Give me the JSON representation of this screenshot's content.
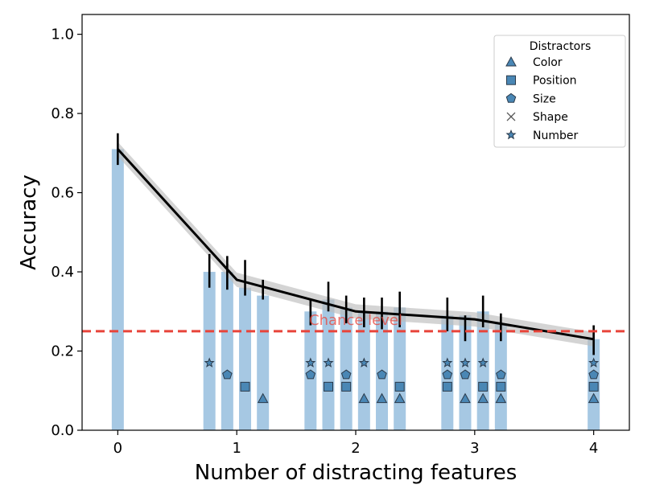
{
  "chart_data": {
    "type": "bar",
    "xlabel": "Number of distracting features",
    "ylabel": "Accuracy",
    "xlim": [
      -0.3,
      4.3
    ],
    "ylim": [
      0.0,
      1.05
    ],
    "xticks": [
      "0",
      "1",
      "2",
      "3",
      "4"
    ],
    "yticks": [
      "0.0",
      "0.2",
      "0.4",
      "0.6",
      "0.8",
      "1.0"
    ],
    "grid": false,
    "bars": [
      {
        "x": 0.0,
        "value": 0.71,
        "markers": []
      },
      {
        "x": 0.77,
        "value": 0.4,
        "markers": [
          "Number"
        ]
      },
      {
        "x": 0.92,
        "value": 0.4,
        "markers": [
          "Size"
        ]
      },
      {
        "x": 1.07,
        "value": 0.36,
        "markers": [
          "Position"
        ]
      },
      {
        "x": 1.22,
        "value": 0.34,
        "markers": [
          "Color"
        ]
      },
      {
        "x": 1.62,
        "value": 0.3,
        "markers": [
          "Size",
          "Number"
        ]
      },
      {
        "x": 1.77,
        "value": 0.33,
        "markers": [
          "Position",
          "Number"
        ]
      },
      {
        "x": 1.92,
        "value": 0.31,
        "markers": [
          "Position",
          "Size"
        ]
      },
      {
        "x": 2.07,
        "value": 0.3,
        "markers": [
          "Color",
          "Number"
        ]
      },
      {
        "x": 2.22,
        "value": 0.3,
        "markers": [
          "Color",
          "Size"
        ]
      },
      {
        "x": 2.37,
        "value": 0.31,
        "markers": [
          "Color",
          "Position"
        ]
      },
      {
        "x": 2.77,
        "value": 0.29,
        "markers": [
          "Position",
          "Size",
          "Number"
        ]
      },
      {
        "x": 2.92,
        "value": 0.29,
        "markers": [
          "Color",
          "Size",
          "Number"
        ]
      },
      {
        "x": 3.07,
        "value": 0.3,
        "markers": [
          "Color",
          "Position",
          "Number"
        ]
      },
      {
        "x": 3.22,
        "value": 0.27,
        "markers": [
          "Color",
          "Position",
          "Size"
        ]
      },
      {
        "x": 4.0,
        "value": 0.23,
        "markers": [
          "Color",
          "Position",
          "Size",
          "Number"
        ]
      }
    ],
    "line": {
      "x": [
        0,
        1,
        2,
        3,
        4
      ],
      "y": [
        0.71,
        0.38,
        0.3,
        0.28,
        0.23
      ],
      "ci_half_width": 0.018
    },
    "error_bars": [
      {
        "x": 0.0,
        "low": 0.67,
        "high": 0.75
      },
      {
        "x": 0.77,
        "low": 0.36,
        "high": 0.445
      },
      {
        "x": 0.92,
        "low": 0.355,
        "high": 0.44
      },
      {
        "x": 1.07,
        "low": 0.34,
        "high": 0.43
      },
      {
        "x": 1.22,
        "low": 0.33,
        "high": 0.38
      },
      {
        "x": 1.62,
        "low": 0.265,
        "high": 0.33
      },
      {
        "x": 1.77,
        "low": 0.3,
        "high": 0.375
      },
      {
        "x": 1.92,
        "low": 0.27,
        "high": 0.34
      },
      {
        "x": 2.07,
        "low": 0.26,
        "high": 0.335
      },
      {
        "x": 2.22,
        "low": 0.255,
        "high": 0.335
      },
      {
        "x": 2.37,
        "low": 0.26,
        "high": 0.35
      },
      {
        "x": 2.77,
        "low": 0.25,
        "high": 0.335
      },
      {
        "x": 2.92,
        "low": 0.225,
        "high": 0.29
      },
      {
        "x": 3.07,
        "low": 0.26,
        "high": 0.34
      },
      {
        "x": 3.22,
        "low": 0.225,
        "high": 0.295
      },
      {
        "x": 4.0,
        "low": 0.19,
        "high": 0.265
      }
    ],
    "chance_level": {
      "value": 0.25,
      "label": "Chance level",
      "color": "#e8443a"
    },
    "marker_levels": {
      "Color": 0.08,
      "Position": 0.11,
      "Size": 0.14,
      "Number": 0.17
    },
    "legend": {
      "title": "Distractors",
      "position": "top-right",
      "entries": [
        {
          "label": "Color",
          "marker": "triangle"
        },
        {
          "label": "Position",
          "marker": "square"
        },
        {
          "label": "Size",
          "marker": "pentagon"
        },
        {
          "label": "Shape",
          "marker": "x"
        },
        {
          "label": "Number",
          "marker": "star"
        }
      ]
    },
    "colors": {
      "bar": "#a6c8e3",
      "line": "#000000",
      "band": "#bdbdbd",
      "marker_fill": "#4a87b5",
      "marker_edge": "#2b3a4a"
    }
  }
}
